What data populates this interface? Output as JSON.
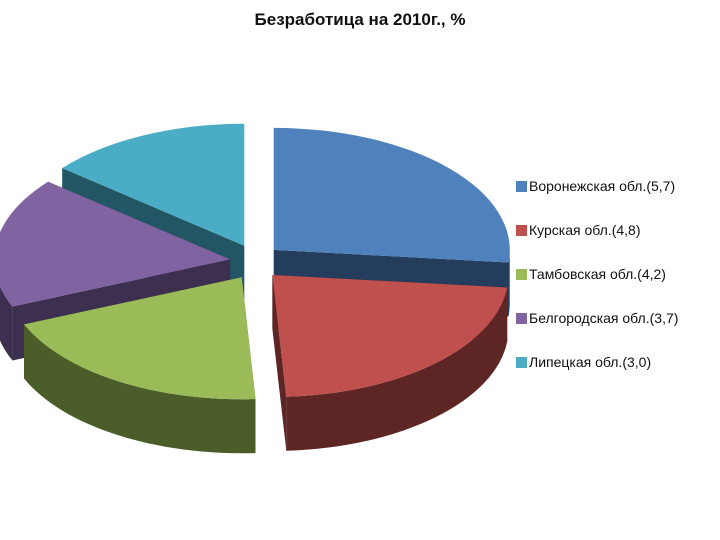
{
  "chart_data": {
    "type": "pie",
    "style": "3d-exploded",
    "title": "Безработица на 2010г., %",
    "series": [
      {
        "label": "Воронежская обл.(5,7)",
        "value": 5.7,
        "color": "#4f81bd",
        "side_color": "#253d5c"
      },
      {
        "label": "Курская обл.(4,8)",
        "value": 4.8,
        "color": "#c0504d",
        "side_color": "#5d2524"
      },
      {
        "label": "Тамбовская обл.(4,2)",
        "value": 4.2,
        "color": "#9bbb59",
        "side_color": "#4b5e2a"
      },
      {
        "label": "Белгородская обл.(3,7)",
        "value": 3.7,
        "color": "#8064a2",
        "side_color": "#3d2f4f"
      },
      {
        "label": "Липецкая обл.(3,0)",
        "value": 3.0,
        "color": "#4bacc6",
        "side_color": "#225664"
      }
    ],
    "legend_position": "right"
  }
}
